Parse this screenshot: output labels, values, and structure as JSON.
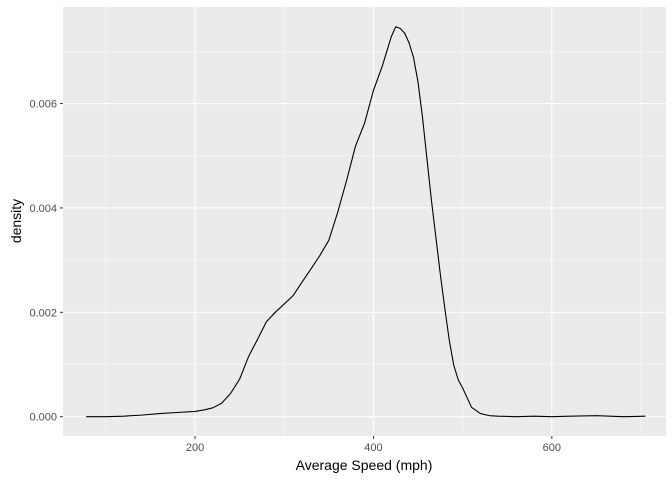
{
  "chart_data": {
    "type": "line",
    "title": "",
    "xlabel": "Average Speed (mph)",
    "ylabel": "density",
    "xlim": [
      52,
      728
    ],
    "ylim": [
      -0.00037,
      0.00785
    ],
    "x_ticks": [
      200,
      400,
      600
    ],
    "x_tick_labels": [
      "200",
      "400",
      "600"
    ],
    "y_ticks": [
      0,
      0.002,
      0.004,
      0.006
    ],
    "y_tick_labels": [
      "0.000",
      "0.002",
      "0.004",
      "0.006"
    ],
    "x_minor_ticks": [
      100,
      300,
      500,
      700
    ],
    "y_minor_ticks": [
      0.001,
      0.003,
      0.005,
      0.007
    ],
    "grid": true,
    "legend": "none",
    "colors": {
      "panel": "#ebebeb",
      "grid": "#ffffff",
      "line": "#000000",
      "tick_text": "#4d4d4d",
      "tick_mark": "#333333"
    },
    "series": [
      {
        "x": [
          78,
          100,
          120,
          140,
          160,
          180,
          200,
          210,
          220,
          230,
          240,
          250,
          260,
          270,
          280,
          290,
          300,
          310,
          320,
          330,
          340,
          350,
          360,
          370,
          380,
          390,
          400,
          410,
          420,
          425,
          430,
          435,
          440,
          445,
          450,
          455,
          460,
          465,
          470,
          475,
          480,
          485,
          490,
          495,
          500,
          510,
          520,
          530,
          540,
          560,
          580,
          600,
          620,
          650,
          680,
          705
        ],
        "y": [
          0.0,
          0.0,
          1e-05,
          3e-05,
          6e-05,
          8e-05,
          0.0001,
          0.00013,
          0.00017,
          0.00026,
          0.00045,
          0.00072,
          0.00115,
          0.00148,
          0.00182,
          0.002,
          0.00216,
          0.00232,
          0.00258,
          0.00283,
          0.00309,
          0.00338,
          0.00392,
          0.00453,
          0.00519,
          0.00562,
          0.00625,
          0.00672,
          0.00728,
          0.00747,
          0.00744,
          0.00735,
          0.00716,
          0.00688,
          0.00641,
          0.00574,
          0.00494,
          0.00415,
          0.00344,
          0.00273,
          0.00208,
          0.00147,
          0.00099,
          0.00071,
          0.00055,
          0.00018,
          6e-05,
          2e-05,
          1e-05,
          0.0,
          1e-05,
          0.0,
          1e-05,
          2e-05,
          0.0,
          1e-05
        ]
      }
    ]
  }
}
